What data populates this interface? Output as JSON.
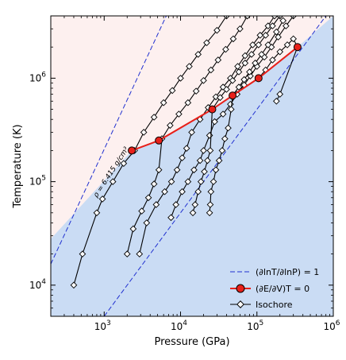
{
  "chart_data": {
    "type": "line",
    "xlabel": "Pressure (GPa)",
    "ylabel": "Temperature (K)",
    "xscale": "log",
    "yscale": "log",
    "xlim": [
      200,
      1000000
    ],
    "ylim": [
      5000,
      4000000
    ],
    "x_ticks": [
      {
        "value": 1000,
        "base": "10",
        "exp": "3"
      },
      {
        "value": 10000,
        "base": "10",
        "exp": "4"
      },
      {
        "value": 100000,
        "base": "10",
        "exp": "5"
      },
      {
        "value": 1000000,
        "base": "10",
        "exp": "6"
      }
    ],
    "y_ticks": [
      {
        "value": 10000,
        "base": "10",
        "exp": "4"
      },
      {
        "value": 100000,
        "base": "10",
        "exp": "5"
      },
      {
        "value": 1000000,
        "base": "10",
        "exp": "6"
      }
    ],
    "region_colors": {
      "upper": "#fdf0ef",
      "lower": "#cadcf4"
    },
    "region_boundary": [
      [
        200,
        28000
      ],
      [
        2300,
        200000
      ],
      [
        5200,
        250000
      ],
      [
        26000,
        500000
      ],
      [
        48000,
        680000
      ],
      [
        105000,
        1000000
      ],
      [
        340000,
        2000000
      ],
      [
        1000000,
        4000000
      ]
    ],
    "annotation": {
      "text": "ρ = 6.415 g/cm³",
      "x": 1300,
      "y": 120000,
      "rotation_deg": -57
    },
    "adiabat_lines": [
      {
        "points": [
          [
            200,
            16000
          ],
          [
            6500,
            4000000
          ]
        ]
      },
      {
        "points": [
          [
            1000,
            5000
          ],
          [
            800000,
            4000000
          ]
        ]
      }
    ],
    "isochores": [
      {
        "points": [
          [
            400,
            10000
          ],
          [
            520,
            20000
          ],
          [
            800,
            50000
          ],
          [
            950,
            68000
          ],
          [
            1300,
            100000
          ],
          [
            1800,
            150000
          ],
          [
            2500,
            200000
          ],
          [
            3300,
            300000
          ],
          [
            4500,
            420000
          ],
          [
            6000,
            580000
          ],
          [
            7800,
            760000
          ],
          [
            10000,
            1000000
          ],
          [
            13000,
            1300000
          ],
          [
            17000,
            1700000
          ],
          [
            22000,
            2200000
          ],
          [
            30000,
            2900000
          ],
          [
            40000,
            4000000
          ]
        ]
      },
      {
        "points": [
          [
            2000,
            20000
          ],
          [
            2400,
            35000
          ],
          [
            3100,
            52000
          ],
          [
            3800,
            70000
          ],
          [
            4500,
            95000
          ],
          [
            5200,
            130000
          ],
          [
            5700,
            260000
          ],
          [
            7300,
            350000
          ],
          [
            9500,
            450000
          ],
          [
            12500,
            580000
          ],
          [
            16000,
            750000
          ],
          [
            20000,
            950000
          ],
          [
            25000,
            1200000
          ],
          [
            31000,
            1500000
          ],
          [
            39000,
            1900000
          ],
          [
            49000,
            2400000
          ],
          [
            60000,
            3000000
          ],
          [
            75000,
            4000000
          ]
        ]
      },
      {
        "points": [
          [
            2900,
            20000
          ],
          [
            3600,
            40000
          ],
          [
            4800,
            60000
          ],
          [
            6200,
            80000
          ],
          [
            7600,
            100000
          ],
          [
            9000,
            130000
          ],
          [
            10500,
            170000
          ],
          [
            12000,
            210000
          ],
          [
            14000,
            300000
          ],
          [
            18000,
            400000
          ],
          [
            23000,
            520000
          ],
          [
            29000,
            660000
          ],
          [
            36000,
            820000
          ],
          [
            45000,
            1000000
          ],
          [
            56000,
            1300000
          ],
          [
            70000,
            1650000
          ],
          [
            88000,
            2100000
          ],
          [
            110000,
            2600000
          ],
          [
            140000,
            3200000
          ],
          [
            170000,
            4000000
          ]
        ]
      },
      {
        "points": [
          [
            7500,
            45000
          ],
          [
            8700,
            60000
          ],
          [
            10500,
            80000
          ],
          [
            12500,
            100000
          ],
          [
            15000,
            130000
          ],
          [
            18000,
            160000
          ],
          [
            20000,
            200000
          ],
          [
            24000,
            280000
          ],
          [
            28000,
            380000
          ],
          [
            36000,
            450000
          ],
          [
            45000,
            560000
          ],
          [
            55000,
            700000
          ],
          [
            68000,
            860000
          ],
          [
            82000,
            1050000
          ],
          [
            100000,
            1300000
          ],
          [
            125000,
            1600000
          ],
          [
            155000,
            2000000
          ],
          [
            190000,
            2500000
          ],
          [
            240000,
            3200000
          ],
          [
            300000,
            4000000
          ]
        ]
      },
      {
        "points": [
          [
            14500,
            50000
          ],
          [
            15500,
            60000
          ],
          [
            17000,
            80000
          ],
          [
            18500,
            100000
          ],
          [
            20500,
            125000
          ],
          [
            22500,
            160000
          ],
          [
            24500,
            200000
          ],
          [
            26000,
            500000
          ],
          [
            33000,
            650000
          ],
          [
            40000,
            780000
          ],
          [
            48000,
            950000
          ],
          [
            58000,
            1150000
          ],
          [
            70000,
            1400000
          ],
          [
            85000,
            1700000
          ],
          [
            105000,
            2100000
          ],
          [
            130000,
            2600000
          ],
          [
            160000,
            3200000
          ],
          [
            200000,
            4000000
          ]
        ]
      },
      {
        "points": [
          [
            24000,
            50000
          ],
          [
            24500,
            60000
          ],
          [
            25000,
            80000
          ],
          [
            27000,
            100000
          ],
          [
            29000,
            130000
          ],
          [
            32000,
            160000
          ],
          [
            35000,
            200000
          ],
          [
            38000,
            260000
          ],
          [
            42000,
            330000
          ],
          [
            46000,
            500000
          ],
          [
            48000,
            680000
          ],
          [
            58000,
            820000
          ],
          [
            68000,
            970000
          ],
          [
            80000,
            1150000
          ],
          [
            95000,
            1400000
          ],
          [
            115000,
            1700000
          ],
          [
            140000,
            2100000
          ],
          [
            180000,
            2800000
          ],
          [
            220000,
            3600000
          ]
        ]
      },
      {
        "points": [
          [
            105000,
            1000000
          ],
          [
            130000,
            1200000
          ],
          [
            160000,
            1500000
          ],
          [
            200000,
            1800000
          ],
          [
            250000,
            2100000
          ],
          [
            300000,
            2400000
          ],
          [
            340000,
            2000000
          ],
          [
            200000,
            700000
          ],
          [
            180000,
            600000
          ]
        ]
      }
    ],
    "red_curve": {
      "points": [
        [
          2300,
          200000
        ],
        [
          5200,
          250000
        ],
        [
          26000,
          500000
        ],
        [
          48000,
          680000
        ],
        [
          105000,
          1000000
        ],
        [
          340000,
          2000000
        ]
      ]
    },
    "legend": {
      "position": "lower-right",
      "entries": [
        {
          "label": "(∂lnT/∂lnP) = 1"
        },
        {
          "label": "(∂E/∂V)T = 0"
        },
        {
          "label": "Isochore"
        }
      ]
    },
    "colors": {
      "red": "#e8201a",
      "blue": "#2030d0",
      "isochore": "#000000"
    }
  }
}
